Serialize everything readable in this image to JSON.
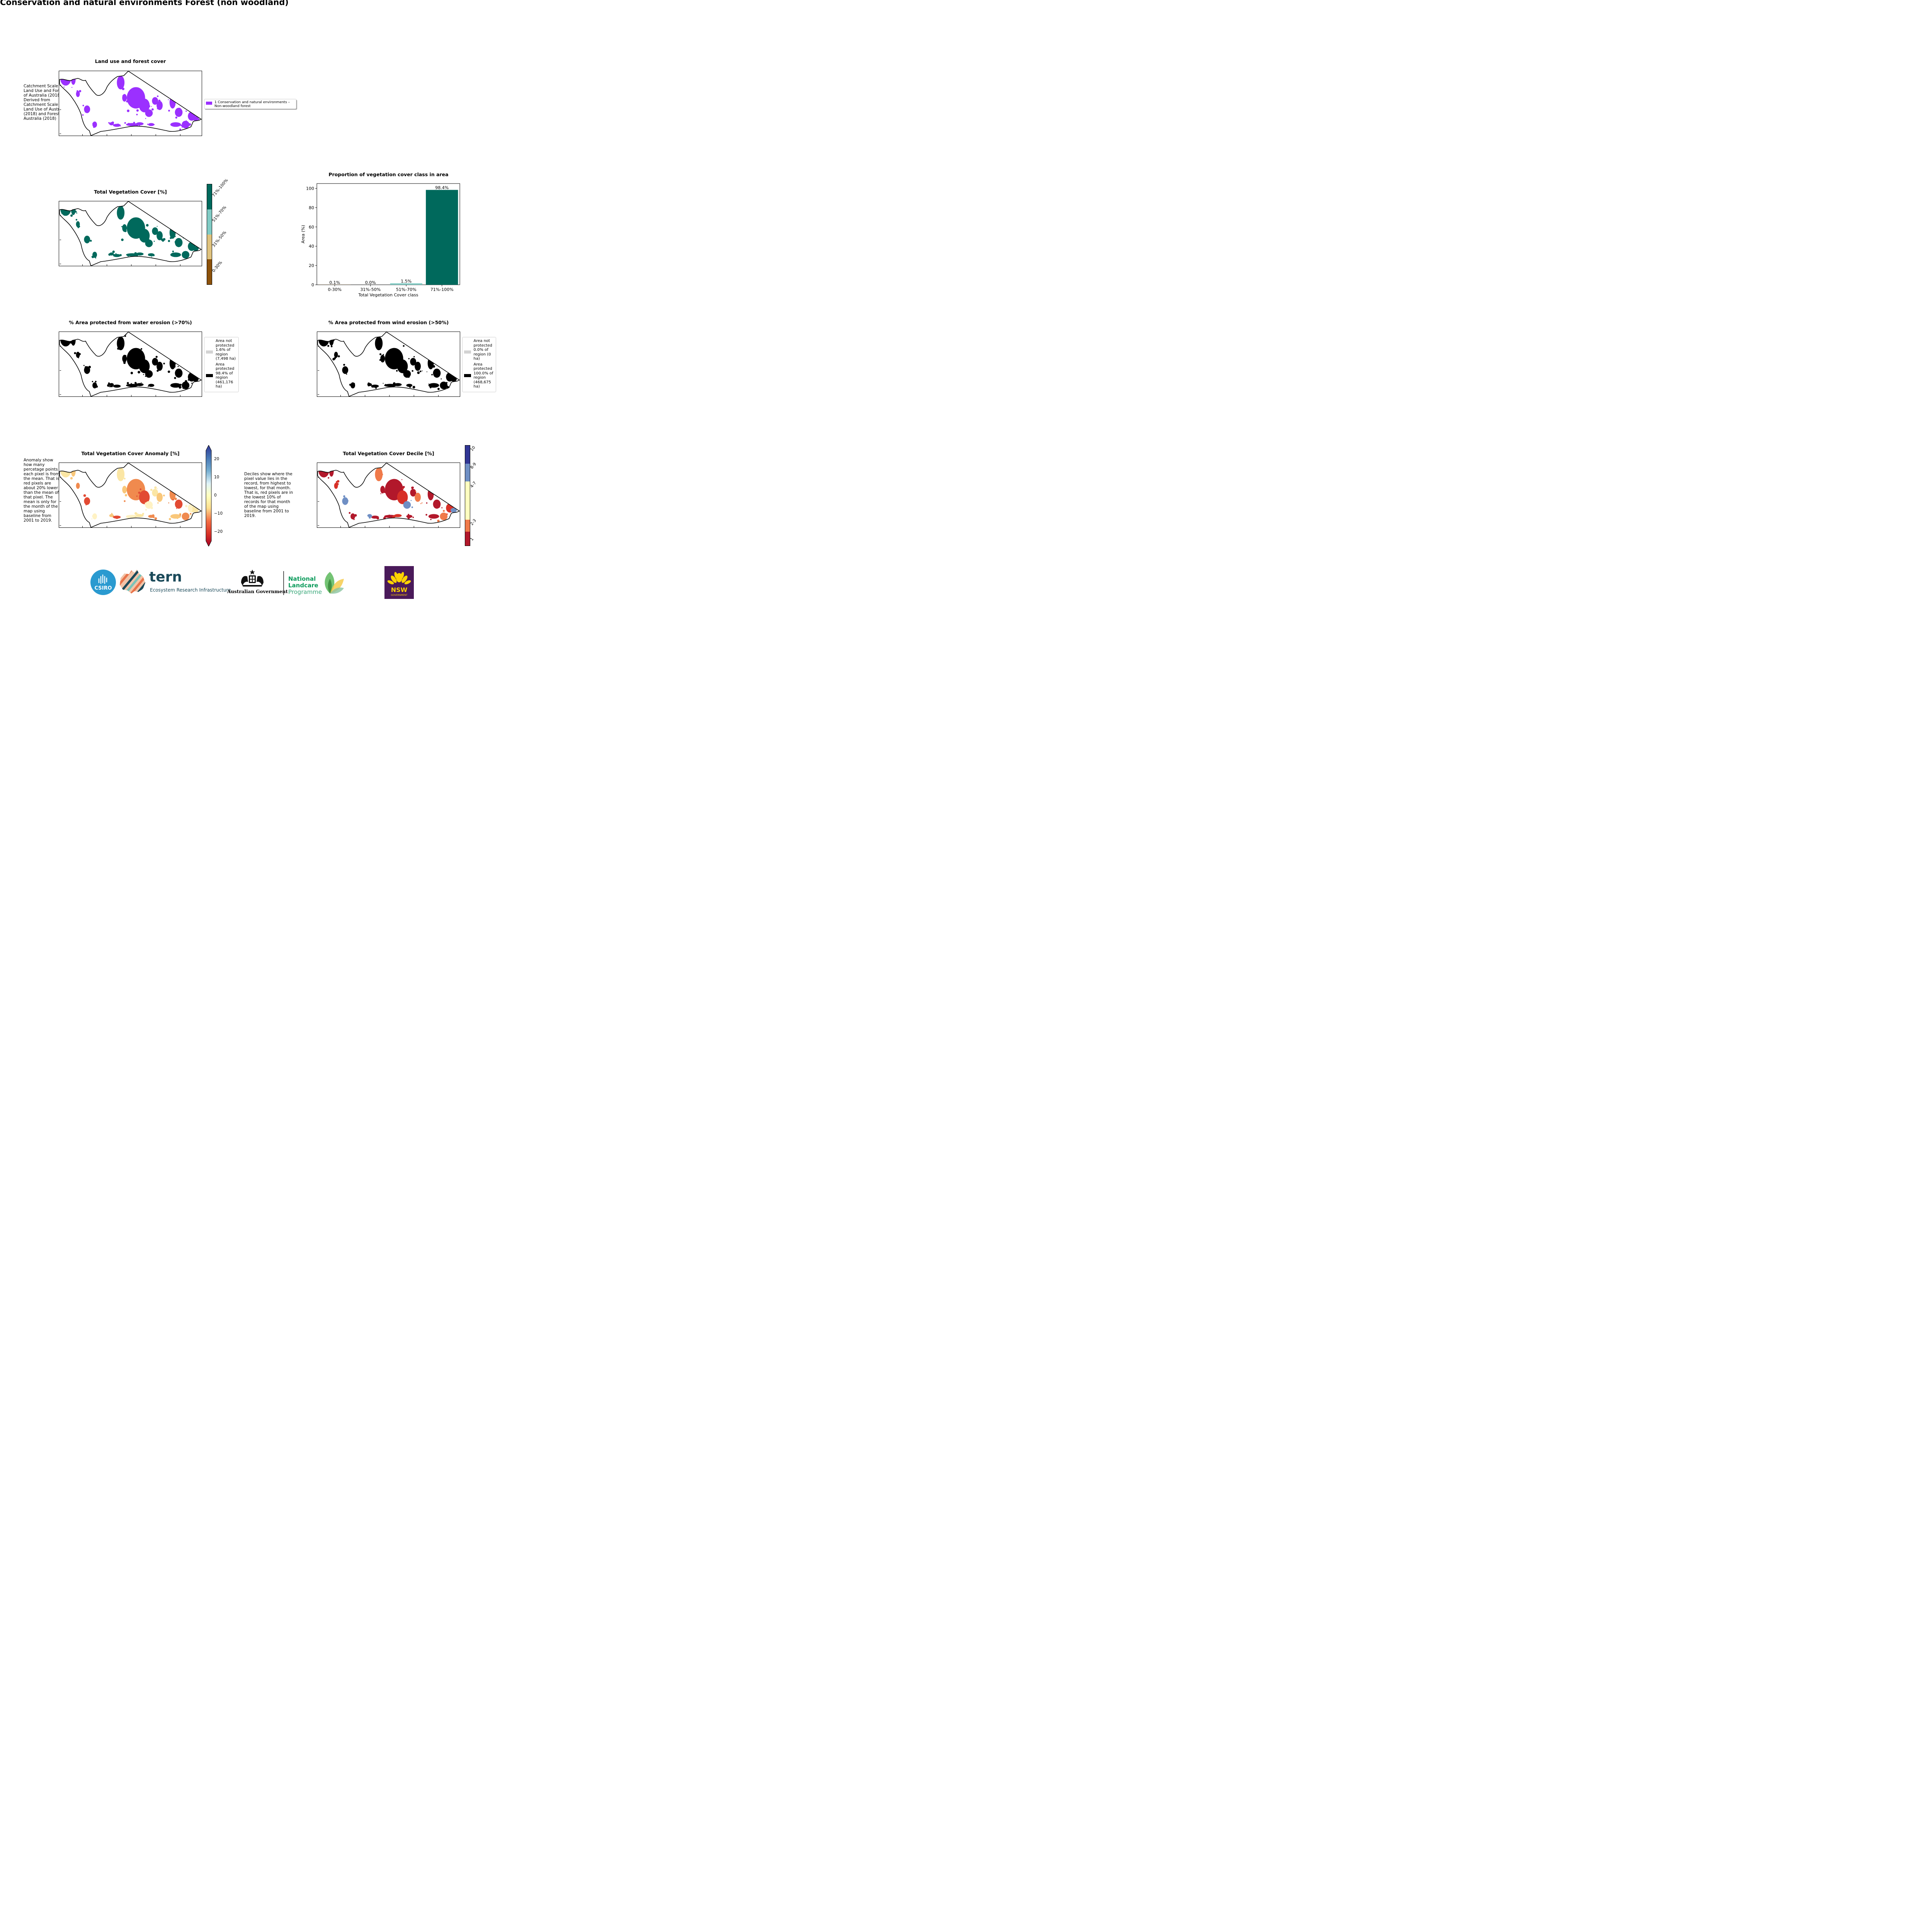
{
  "page_title": "Conservation and natural environments Forest (non woodland)",
  "land_use": {
    "title": "Land use and forest cover",
    "side_note": "Catchment Scale Land Use and Forests of Australia (2018) Derived from Catchment Scale Land Use of Australia (2018) and Forests of Australia (2018)",
    "legend_label": "1 Conservation and natural environments – Non-woodland forest",
    "color": "#9b30ff"
  },
  "tvc": {
    "title": "Total Vegetation Cover [%]",
    "color": "#00695c",
    "classes": [
      {
        "label": "71%-100%",
        "color": "#00695c"
      },
      {
        "label": "51%-70%",
        "color": "#80cbc4"
      },
      {
        "label": "31%-50%",
        "color": "#dfc27d"
      },
      {
        "label": "0-30%",
        "color": "#8c510a"
      }
    ]
  },
  "chart_data": {
    "type": "bar",
    "title": "Proportion of vegetation cover class in area",
    "categories": [
      "0-30%",
      "31%-50%",
      "51%-70%",
      "71%-100%"
    ],
    "values": [
      0.1,
      0.0,
      1.5,
      98.4
    ],
    "value_labels": [
      "0.1%",
      "0.0%",
      "1.5%",
      "98.4%"
    ],
    "colors": [
      "#8c510a",
      "#dfc27d",
      "#80cbc4",
      "#00695c"
    ],
    "xlabel": "Total Vegetation Cover class",
    "ylabel": "Area (%)",
    "ylim": [
      0,
      105
    ],
    "yticks": [
      0,
      20,
      40,
      60,
      80,
      100
    ]
  },
  "water": {
    "title": "% Area protected from water erosion (>70%)",
    "legend": [
      {
        "label": "Area not protected 1.6% of region (7,498 ha)",
        "color": "#d3d3d3"
      },
      {
        "label": "Area protected 98.4% of region (461,176 ha)",
        "color": "#000000"
      }
    ]
  },
  "wind": {
    "title": "% Area protected from wind erosion (>50%)",
    "legend": [
      {
        "label": "Area not protected 0.0% of region (0 ha)",
        "color": "#d3d3d3"
      },
      {
        "label": "Area protected 100.0% of region (468,675 ha)",
        "color": "#000000"
      }
    ]
  },
  "anomaly": {
    "title": "Total Vegetation Cover Anomaly [%]",
    "note": "Anomaly show how many percetage points each pixel is from the mean. That is, red pixels are about 20% lower than the mean of that pixel. The mean is only for the month of the map using baseline from 2001 to 2019.",
    "ticks": [
      "20",
      "10",
      "0",
      "−10",
      "−20"
    ]
  },
  "decile": {
    "title": "Total Vegetation Cover Decile [%]",
    "note": "Deciles show where the pixel value lies in the record, from highest to lowest, for that month. That is, red pixels are in the lowest 10% of records for that month of the map using baseline from 2001 to 2019.",
    "classes": [
      {
        "label": "10",
        "color": "#313695"
      },
      {
        "label": "8-9",
        "color": "#6f8fc4"
      },
      {
        "label": "4-7",
        "color": "#ffffbf"
      },
      {
        "label": "2-3",
        "color": "#f07a4a"
      },
      {
        "label": "1",
        "color": "#b2182b"
      }
    ]
  },
  "logos": {
    "csiro": "CSIRO",
    "tern": "tern",
    "tern_sub": "Ecosystem Research Infrastructure",
    "aus_gov": "Australian Government",
    "landcare_1": "National",
    "landcare_2": "Landcare",
    "landcare_3": "Programme",
    "nsw": "NSW",
    "nsw_sub": "GOVERNMENT"
  }
}
